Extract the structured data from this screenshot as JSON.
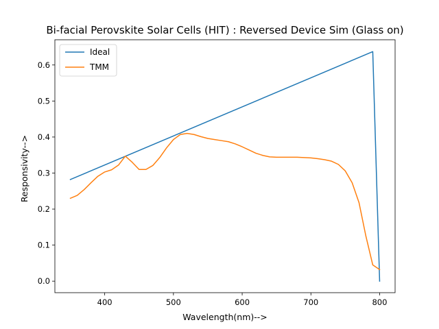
{
  "chart_data": {
    "type": "line",
    "title": "Bi-facial Perovskite Solar Cells (HIT) : Reversed Device Sim (Glass on)",
    "xlabel": "Wavelength(nm)-->",
    "ylabel": "Responsivity-->",
    "xlim": [
      327.5,
      822.5
    ],
    "ylim": [
      -0.032,
      0.67
    ],
    "xticks": [
      400,
      500,
      600,
      700,
      800
    ],
    "yticks": [
      0.0,
      0.1,
      0.2,
      0.3,
      0.4,
      0.5,
      0.6
    ],
    "xtick_labels": [
      "400",
      "500",
      "600",
      "700",
      "800"
    ],
    "ytick_labels": [
      "0.0",
      "0.1",
      "0.2",
      "0.3",
      "0.4",
      "0.5",
      "0.6"
    ],
    "grid": false,
    "legend_position": "top-left",
    "series": [
      {
        "name": "Ideal",
        "color": "#1f77b4",
        "x": [
          350,
          790,
          800
        ],
        "y": [
          0.282,
          0.637,
          0.0
        ]
      },
      {
        "name": "TMM",
        "color": "#ff7f0e",
        "x": [
          350,
          360,
          370,
          380,
          390,
          400,
          410,
          420,
          430,
          440,
          450,
          460,
          470,
          480,
          490,
          500,
          510,
          520,
          530,
          540,
          550,
          560,
          570,
          580,
          590,
          600,
          610,
          620,
          630,
          640,
          650,
          660,
          670,
          680,
          690,
          700,
          710,
          720,
          730,
          740,
          750,
          760,
          770,
          780,
          790,
          800
        ],
        "y": [
          0.23,
          0.238,
          0.254,
          0.273,
          0.291,
          0.303,
          0.309,
          0.322,
          0.347,
          0.33,
          0.31,
          0.31,
          0.321,
          0.343,
          0.37,
          0.393,
          0.407,
          0.41,
          0.407,
          0.401,
          0.396,
          0.393,
          0.39,
          0.387,
          0.381,
          0.373,
          0.364,
          0.355,
          0.349,
          0.345,
          0.344,
          0.344,
          0.344,
          0.344,
          0.343,
          0.342,
          0.34,
          0.337,
          0.333,
          0.324,
          0.306,
          0.273,
          0.218,
          0.125,
          0.045,
          0.032
        ]
      }
    ]
  }
}
